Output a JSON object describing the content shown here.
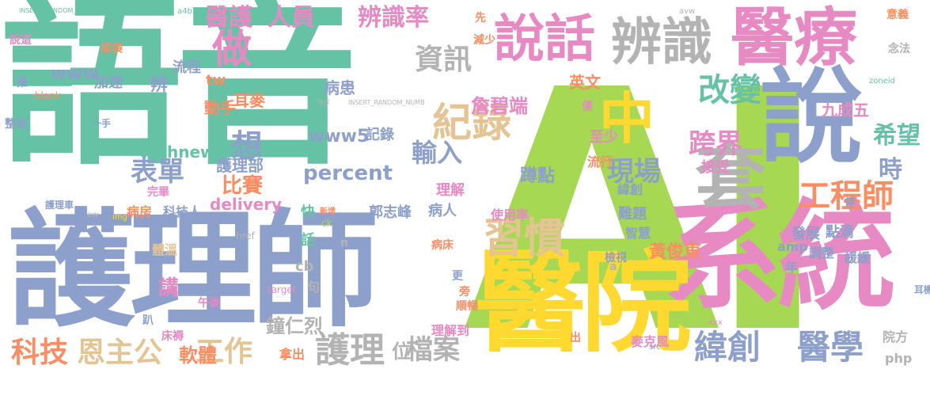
{
  "palette": {
    "green": "#66c2a5",
    "orange": "#fc8d62",
    "blue": "#8da0cb",
    "pink": "#e78ac3",
    "lime": "#a6d854",
    "yellow": "#ffd92f",
    "tan": "#e5c494",
    "gray": "#b3b3b3"
  },
  "words": [
    {
      "text": "語音",
      "color": "green"
    },
    {
      "text": "AI",
      "color": "lime"
    },
    {
      "text": "護理師",
      "color": "blue"
    },
    {
      "text": "系統",
      "color": "pink"
    },
    {
      "text": "醫院",
      "color": "yellow"
    },
    {
      "text": "說",
      "color": "blue"
    },
    {
      "text": "醫療",
      "color": "pink"
    },
    {
      "text": "說話",
      "color": "pink"
    },
    {
      "text": "辨識",
      "color": "gray"
    },
    {
      "text": "套",
      "color": "gray"
    },
    {
      "text": "中",
      "color": "yellow"
    },
    {
      "text": "習慣",
      "color": "tan"
    },
    {
      "text": "紀錄",
      "color": "tan"
    },
    {
      "text": "工程師",
      "color": "orange"
    },
    {
      "text": "緯創",
      "color": "blue"
    },
    {
      "text": "醫學",
      "color": "blue"
    },
    {
      "text": "護理",
      "color": "gray"
    },
    {
      "text": "工作",
      "color": "tan"
    },
    {
      "text": "科技",
      "color": "orange"
    },
    {
      "text": "恩主公",
      "color": "tan"
    },
    {
      "text": "做",
      "color": "pink"
    },
    {
      "text": "人員",
      "color": "pink"
    },
    {
      "text": "醫護",
      "color": "pink"
    },
    {
      "text": "辨識率",
      "color": "pink"
    },
    {
      "text": "資訊",
      "color": "gray"
    },
    {
      "text": "改變",
      "color": "green"
    },
    {
      "text": "希望",
      "color": "green"
    },
    {
      "text": "跨界",
      "color": "pink"
    },
    {
      "text": "時",
      "color": "blue"
    },
    {
      "text": "想",
      "color": "blue"
    },
    {
      "text": "表單",
      "color": "blue"
    },
    {
      "text": "輸入",
      "color": "blue"
    },
    {
      "text": "現場",
      "color": "blue"
    },
    {
      "text": "比賽",
      "color": "orange"
    },
    {
      "text": "percent",
      "color": "blue"
    },
    {
      "text": "www5",
      "color": "blue"
    },
    {
      "text": "www",
      "color": "blue"
    },
    {
      "text": "詹碧端",
      "color": "pink"
    },
    {
      "text": "檔案",
      "color": "gray"
    },
    {
      "text": "位",
      "color": "gray"
    },
    {
      "text": "軟體",
      "color": "orange"
    },
    {
      "text": "鐘仁烈",
      "color": "gray"
    },
    {
      "text": "technews",
      "color": "green"
    },
    {
      "text": "delivery",
      "color": "pink"
    },
    {
      "text": "護理部",
      "color": "blue"
    },
    {
      "text": "講",
      "color": "pink"
    },
    {
      "text": "黃俊東",
      "color": "orange"
    },
    {
      "text": "九成五",
      "color": "pink"
    },
    {
      "text": "流程",
      "color": "blue"
    },
    {
      "text": "動手",
      "color": "orange"
    },
    {
      "text": "耳麥",
      "color": "orange"
    },
    {
      "text": "病患",
      "color": "blue"
    },
    {
      "text": "加速",
      "color": "blue"
    },
    {
      "text": "辨",
      "color": "blue"
    },
    {
      "text": "英文",
      "color": "orange"
    },
    {
      "text": "理解",
      "color": "pink"
    },
    {
      "text": "蹲點",
      "color": "blue"
    },
    {
      "text": "至少",
      "color": "pink"
    },
    {
      "text": "接受",
      "color": "pink"
    },
    {
      "text": "流行",
      "color": "orange"
    },
    {
      "text": "記錄",
      "color": "blue"
    },
    {
      "text": "郭志峰",
      "color": "blue"
    },
    {
      "text": "病人",
      "color": "blue"
    },
    {
      "text": "科技人",
      "color": "blue"
    },
    {
      "text": "病房",
      "color": "orange"
    },
    {
      "text": "使用率",
      "color": "pink"
    },
    {
      "text": "難題",
      "color": "blue"
    },
    {
      "text": "緯創",
      "color": "blue"
    },
    {
      "text": "智慧",
      "color": "blue"
    },
    {
      "text": "發展",
      "color": "blue"
    },
    {
      "text": "點滴",
      "color": "blue"
    },
    {
      "text": "amp",
      "color": "blue"
    },
    {
      "text": "年",
      "color": "blue"
    },
    {
      "text": "調整",
      "color": "blue"
    },
    {
      "text": "緩緩",
      "color": "blue"
    },
    {
      "text": "停",
      "color": "blue"
    },
    {
      "text": "耳機",
      "color": "blue"
    },
    {
      "text": "院方",
      "color": "gray"
    },
    {
      "text": "php",
      "color": "gray"
    },
    {
      "text": "麥克風",
      "color": "pink"
    },
    {
      "text": "理解到",
      "color": "pink"
    },
    {
      "text": "拿出",
      "color": "orange"
    },
    {
      "text": "出",
      "color": "orange"
    },
    {
      "text": "句",
      "color": "gray"
    },
    {
      "text": "體溫",
      "color": "tan"
    },
    {
      "text": "午後",
      "color": "pink"
    },
    {
      "text": "床褥",
      "color": "pink"
    },
    {
      "text": "趴",
      "color": "blue"
    },
    {
      "text": "更",
      "color": "blue"
    },
    {
      "text": "旁",
      "color": "orange"
    },
    {
      "text": "順暢",
      "color": "orange"
    },
    {
      "text": "病床",
      "color": "orange"
    },
    {
      "text": "檢視",
      "color": "blue"
    },
    {
      "text": "快",
      "color": "green"
    },
    {
      "text": "話",
      "color": "green"
    },
    {
      "text": "cb",
      "color": "gray"
    },
    {
      "text": "tw",
      "color": "orange"
    },
    {
      "text": "整理",
      "color": "blue"
    },
    {
      "text": "一手",
      "color": "blue"
    },
    {
      "text": "護理車",
      "color": "blue"
    },
    {
      "text": "僅",
      "color": "pink"
    },
    {
      "text": "先",
      "color": "orange"
    },
    {
      "text": "減少",
      "color": "orange"
    },
    {
      "text": "念法",
      "color": "gray"
    },
    {
      "text": "意義",
      "color": "orange"
    },
    {
      "text": "尿袋",
      "color": "orange"
    },
    {
      "text": "說道",
      "color": "pink"
    },
    {
      "text": "推",
      "color": "blue"
    },
    {
      "text": "a4b3f35b",
      "color": "green"
    },
    {
      "text": "INSERT_RANDOM_NUMBER_HERE",
      "color": "green"
    },
    {
      "text": "href",
      "color": "gray"
    },
    {
      "text": "target",
      "color": "pink"
    },
    {
      "text": "_blank",
      "color": "orange"
    },
    {
      "text": "zoneid",
      "color": "green"
    },
    {
      "text": "src",
      "color": "blue"
    },
    {
      "text": "xxx",
      "color": "pink"
    },
    {
      "text": "ck",
      "color": "lime"
    },
    {
      "text": "img",
      "color": "yellow"
    },
    {
      "text": "aw",
      "color": "gray"
    },
    {
      "text": "avw",
      "color": "gray"
    },
    {
      "text": "完畢",
      "color": "pink"
    },
    {
      "text": "排尿",
      "color": "gray"
    },
    {
      "text": "INSERT_RANDOM_NUMB",
      "color": "gray"
    },
    {
      "text": "新增",
      "color": "orange"
    },
    {
      "text": "n",
      "color": "gray"
    },
    {
      "text": "a",
      "color": "gray"
    }
  ]
}
